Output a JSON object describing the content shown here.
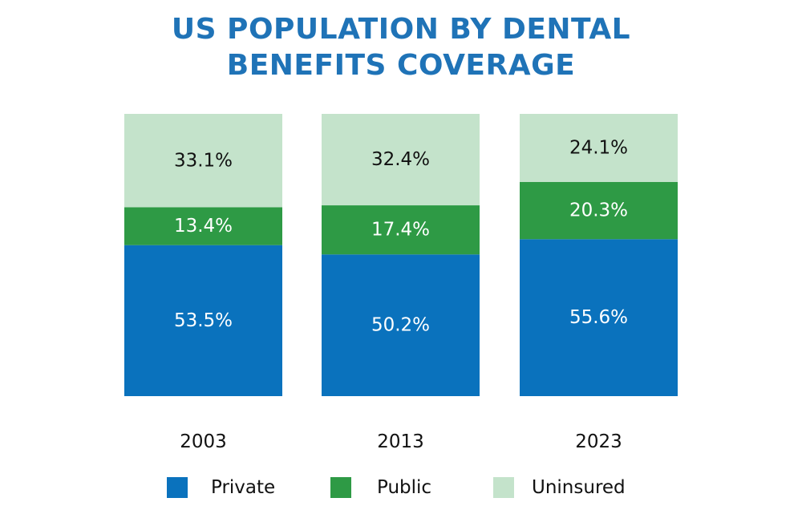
{
  "chart_data": {
    "type": "bar",
    "stacked": true,
    "title": [
      "US POPULATION BY DENTAL",
      "BENEFITS COVERAGE"
    ],
    "categories": [
      "2003",
      "2013",
      "2023"
    ],
    "series": [
      {
        "name": "Private",
        "color": "#0a72bd",
        "label_color": "#ffffff",
        "values": [
          53.5,
          50.2,
          55.6
        ],
        "labels": [
          "53.5%",
          "50.2%",
          "55.6%"
        ]
      },
      {
        "name": "Public",
        "color": "#2e9a45",
        "label_color": "#ffffff",
        "values": [
          13.4,
          17.4,
          20.3
        ],
        "labels": [
          "13.4%",
          "17.4%",
          "20.3%"
        ]
      },
      {
        "name": "Uninsured",
        "color": "#c4e3cb",
        "label_color": "#111111",
        "values": [
          33.1,
          32.4,
          24.1
        ],
        "labels": [
          "33.1%",
          "32.4%",
          "24.1%"
        ]
      }
    ],
    "value_unit": "%",
    "ylim": [
      0,
      100
    ],
    "grid": false,
    "legend_position": "bottom",
    "title_color": "#1f73b7"
  }
}
